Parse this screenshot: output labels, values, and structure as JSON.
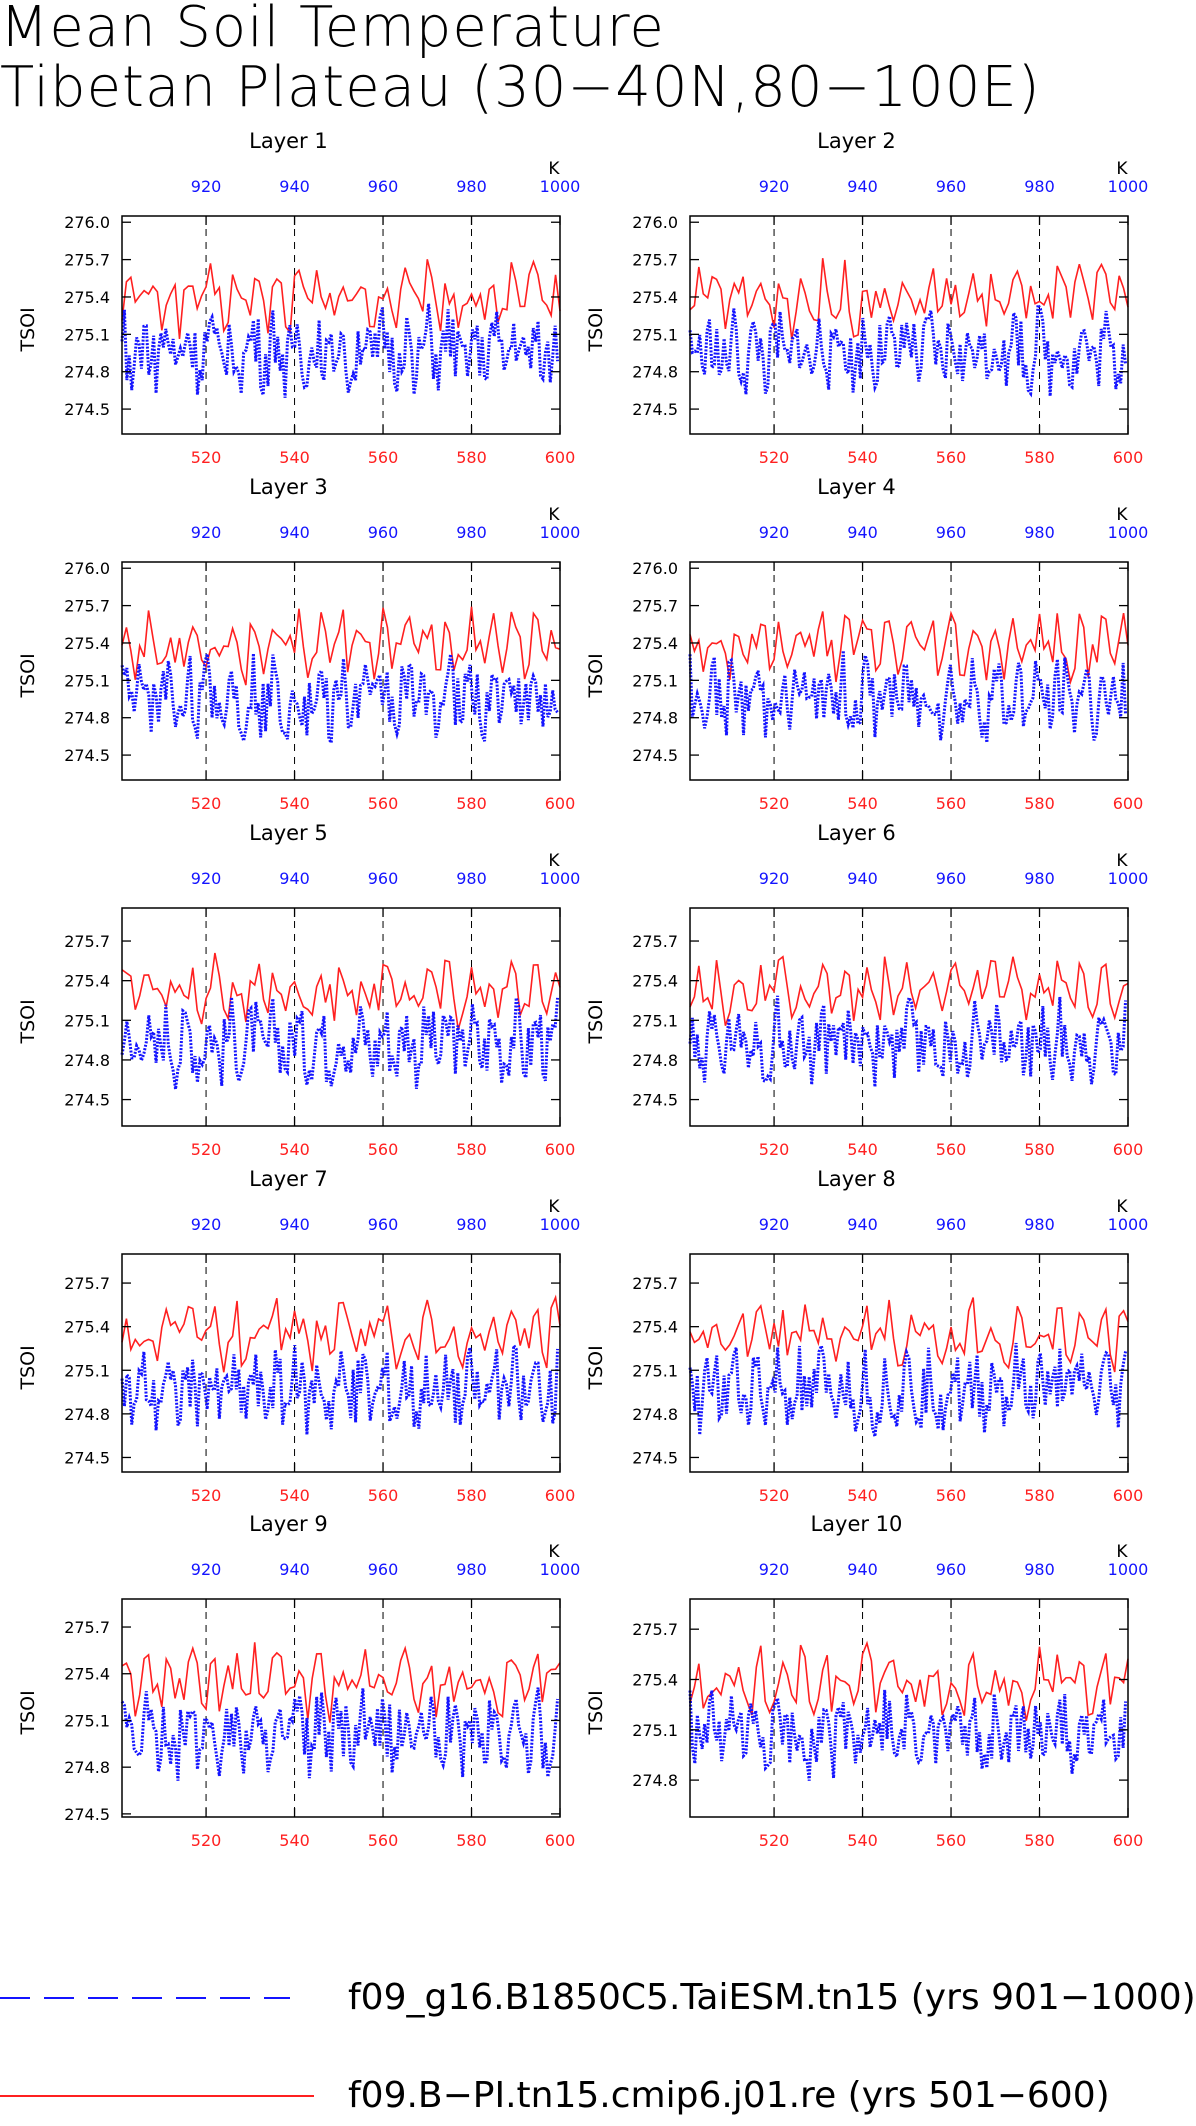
{
  "title": {
    "line1": "Mean Soil Temperature",
    "line2": "Tibetan Plateau (30−40N,80−100E)"
  },
  "colors": {
    "run1": "#1414ff",
    "run2": "#ff2020"
  },
  "legend": [
    {
      "label": "f09_g16.B1850C5.TaiESM.tn15 (yrs 901−1000)",
      "color": "#1414ff",
      "style": "dashed"
    },
    {
      "label": "f09.B−PI.tn15.cmip6.j01.re (yrs 501−600)",
      "color": "#ff2020",
      "style": "solid"
    }
  ],
  "chart_data": [
    {
      "type": "line",
      "title": "Layer 1",
      "ylabel": "TSOI",
      "top_axis_label": "K",
      "x_bottom": {
        "range": [
          501,
          600
        ],
        "ticks": [
          520,
          540,
          560,
          580,
          600
        ]
      },
      "x_top": {
        "range": [
          901,
          1000
        ],
        "ticks": [
          920,
          940,
          960,
          980,
          1000
        ]
      },
      "ylim": [
        274.3,
        276.05
      ],
      "yticks": [
        274.5,
        274.8,
        275.1,
        275.4,
        275.7,
        276.0
      ],
      "grid": "dashed vertical at top-axis ticks"
    },
    {
      "type": "line",
      "title": "Layer 2",
      "ylabel": "TSOI",
      "top_axis_label": "K",
      "x_bottom": {
        "range": [
          501,
          600
        ],
        "ticks": [
          520,
          540,
          560,
          580,
          600
        ]
      },
      "x_top": {
        "range": [
          901,
          1000
        ],
        "ticks": [
          920,
          940,
          960,
          980,
          1000
        ]
      },
      "ylim": [
        274.3,
        276.05
      ],
      "yticks": [
        274.5,
        274.8,
        275.1,
        275.4,
        275.7,
        276.0
      ],
      "grid": "dashed vertical at top-axis ticks"
    },
    {
      "type": "line",
      "title": "Layer 3",
      "ylabel": "TSOI",
      "top_axis_label": "K",
      "x_bottom": {
        "range": [
          501,
          600
        ],
        "ticks": [
          520,
          540,
          560,
          580,
          600
        ]
      },
      "x_top": {
        "range": [
          901,
          1000
        ],
        "ticks": [
          920,
          940,
          960,
          980,
          1000
        ]
      },
      "ylim": [
        274.3,
        276.05
      ],
      "yticks": [
        274.5,
        274.8,
        275.1,
        275.4,
        275.7,
        276.0
      ],
      "grid": "dashed vertical at top-axis ticks"
    },
    {
      "type": "line",
      "title": "Layer 4",
      "ylabel": "TSOI",
      "top_axis_label": "K",
      "x_bottom": {
        "range": [
          501,
          600
        ],
        "ticks": [
          520,
          540,
          560,
          580,
          600
        ]
      },
      "x_top": {
        "range": [
          901,
          1000
        ],
        "ticks": [
          920,
          940,
          960,
          980,
          1000
        ]
      },
      "ylim": [
        274.3,
        276.05
      ],
      "yticks": [
        274.5,
        274.8,
        275.1,
        275.4,
        275.7,
        276.0
      ],
      "grid": "dashed vertical at top-axis ticks"
    },
    {
      "type": "line",
      "title": "Layer 5",
      "ylabel": "TSOI",
      "top_axis_label": "K",
      "x_bottom": {
        "range": [
          501,
          600
        ],
        "ticks": [
          520,
          540,
          560,
          580,
          600
        ]
      },
      "x_top": {
        "range": [
          901,
          1000
        ],
        "ticks": [
          920,
          940,
          960,
          980,
          1000
        ]
      },
      "ylim": [
        274.3,
        275.95
      ],
      "yticks": [
        274.5,
        274.8,
        275.1,
        275.4,
        275.7
      ],
      "grid": "dashed vertical at top-axis ticks"
    },
    {
      "type": "line",
      "title": "Layer 6",
      "ylabel": "TSOI",
      "top_axis_label": "K",
      "x_bottom": {
        "range": [
          501,
          600
        ],
        "ticks": [
          520,
          540,
          560,
          580,
          600
        ]
      },
      "x_top": {
        "range": [
          901,
          1000
        ],
        "ticks": [
          920,
          940,
          960,
          980,
          1000
        ]
      },
      "ylim": [
        274.3,
        275.95
      ],
      "yticks": [
        274.5,
        274.8,
        275.1,
        275.4,
        275.7
      ],
      "grid": "dashed vertical at top-axis ticks"
    },
    {
      "type": "line",
      "title": "Layer 7",
      "ylabel": "TSOI",
      "top_axis_label": "K",
      "x_bottom": {
        "range": [
          501,
          600
        ],
        "ticks": [
          520,
          540,
          560,
          580,
          600
        ]
      },
      "x_top": {
        "range": [
          901,
          1000
        ],
        "ticks": [
          920,
          940,
          960,
          980,
          1000
        ]
      },
      "ylim": [
        274.4,
        275.9
      ],
      "yticks": [
        274.5,
        274.8,
        275.1,
        275.4,
        275.7
      ],
      "grid": "dashed vertical at top-axis ticks"
    },
    {
      "type": "line",
      "title": "Layer 8",
      "ylabel": "TSOI",
      "top_axis_label": "K",
      "x_bottom": {
        "range": [
          501,
          600
        ],
        "ticks": [
          520,
          540,
          560,
          580,
          600
        ]
      },
      "x_top": {
        "range": [
          901,
          1000
        ],
        "ticks": [
          920,
          940,
          960,
          980,
          1000
        ]
      },
      "ylim": [
        274.4,
        275.9
      ],
      "yticks": [
        274.5,
        274.8,
        275.1,
        275.4,
        275.7
      ],
      "grid": "dashed vertical at top-axis ticks"
    },
    {
      "type": "line",
      "title": "Layer 9",
      "ylabel": "TSOI",
      "top_axis_label": "K",
      "x_bottom": {
        "range": [
          501,
          600
        ],
        "ticks": [
          520,
          540,
          560,
          580,
          600
        ]
      },
      "x_top": {
        "range": [
          901,
          1000
        ],
        "ticks": [
          920,
          940,
          960,
          980,
          1000
        ]
      },
      "ylim": [
        274.48,
        275.88
      ],
      "yticks": [
        274.5,
        274.8,
        275.1,
        275.4,
        275.7
      ],
      "grid": "dashed vertical at top-axis ticks"
    },
    {
      "type": "line",
      "title": "Layer 10",
      "ylabel": "TSOI",
      "top_axis_label": "K",
      "x_bottom": {
        "range": [
          501,
          600
        ],
        "ticks": [
          520,
          540,
          560,
          580,
          600
        ]
      },
      "x_top": {
        "range": [
          901,
          1000
        ],
        "ticks": [
          920,
          940,
          960,
          980,
          1000
        ]
      },
      "ylim": [
        274.58,
        275.88
      ],
      "yticks": [
        274.8,
        275.1,
        275.4,
        275.7
      ],
      "grid": "dashed vertical at top-axis ticks"
    }
  ]
}
